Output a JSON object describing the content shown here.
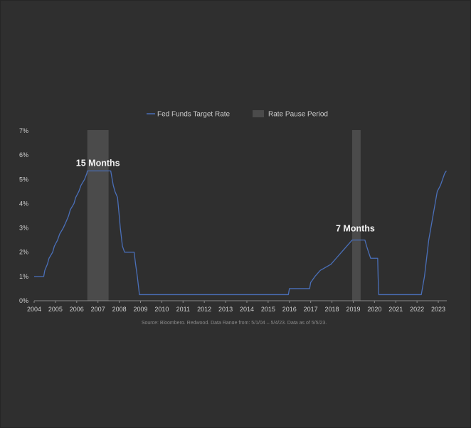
{
  "chart_data": {
    "type": "line",
    "legend": {
      "line_label": "Fed Funds Target Rate",
      "band_label": "Rate Pause Period",
      "placement": "top-center"
    },
    "colors": {
      "line": "#4a6fb8",
      "band": "#4b4b4b",
      "background": "#2f2f2f",
      "text": "#cfcfcf"
    },
    "ylim": [
      0,
      7
    ],
    "y_ticks": [
      {
        "value": 0,
        "label": "0%"
      },
      {
        "value": 1,
        "label": "1%"
      },
      {
        "value": 2,
        "label": "2%"
      },
      {
        "value": 3,
        "label": "3%"
      },
      {
        "value": 4,
        "label": "4%"
      },
      {
        "value": 5,
        "label": "5%"
      },
      {
        "value": 6,
        "label": "6%"
      },
      {
        "value": 7,
        "label": "7%"
      }
    ],
    "xlim": [
      2004,
      2023.4
    ],
    "x_ticks": [
      {
        "value": 2004,
        "label": "2004"
      },
      {
        "value": 2005,
        "label": "2005"
      },
      {
        "value": 2006,
        "label": "2006"
      },
      {
        "value": 2007,
        "label": "2007"
      },
      {
        "value": 2008,
        "label": "2008"
      },
      {
        "value": 2009,
        "label": "2009"
      },
      {
        "value": 2010,
        "label": "2010"
      },
      {
        "value": 2011,
        "label": "2011"
      },
      {
        "value": 2012,
        "label": "2012"
      },
      {
        "value": 2013,
        "label": "2013"
      },
      {
        "value": 2014,
        "label": "2014"
      },
      {
        "value": 2015,
        "label": "2015"
      },
      {
        "value": 2016,
        "label": "2016"
      },
      {
        "value": 2017,
        "label": "2017"
      },
      {
        "value": 2018,
        "label": "2018"
      },
      {
        "value": 2019,
        "label": "2019"
      },
      {
        "value": 2020,
        "label": "2020"
      },
      {
        "value": 2021,
        "label": "2021"
      },
      {
        "value": 2022,
        "label": "2022"
      },
      {
        "value": 2023,
        "label": "2023"
      }
    ],
    "pause_periods": [
      {
        "start": 2006.5,
        "end": 2007.5
      },
      {
        "start": 2018.95,
        "end": 2019.35
      }
    ],
    "annotations": [
      {
        "text": "15 Months",
        "x": 2007.0,
        "y": 5.55
      },
      {
        "text": "7 Months",
        "x": 2019.1,
        "y": 2.85
      }
    ],
    "series": [
      {
        "name": "Fed Funds Target Rate",
        "points": [
          [
            2004.0,
            1.0
          ],
          [
            2004.45,
            1.0
          ],
          [
            2004.5,
            1.25
          ],
          [
            2004.62,
            1.5
          ],
          [
            2004.7,
            1.75
          ],
          [
            2004.87,
            2.0
          ],
          [
            2004.95,
            2.25
          ],
          [
            2005.1,
            2.5
          ],
          [
            2005.2,
            2.75
          ],
          [
            2005.37,
            3.0
          ],
          [
            2005.5,
            3.25
          ],
          [
            2005.62,
            3.5
          ],
          [
            2005.7,
            3.75
          ],
          [
            2005.87,
            4.0
          ],
          [
            2005.95,
            4.25
          ],
          [
            2006.1,
            4.5
          ],
          [
            2006.2,
            4.75
          ],
          [
            2006.37,
            5.0
          ],
          [
            2006.48,
            5.25
          ],
          [
            2006.5,
            5.35
          ],
          [
            2007.6,
            5.35
          ],
          [
            2007.72,
            4.75
          ],
          [
            2007.8,
            4.5
          ],
          [
            2007.92,
            4.25
          ],
          [
            2008.0,
            3.5
          ],
          [
            2008.05,
            3.0
          ],
          [
            2008.15,
            2.25
          ],
          [
            2008.25,
            2.0
          ],
          [
            2008.7,
            2.0
          ],
          [
            2008.77,
            1.5
          ],
          [
            2008.85,
            1.0
          ],
          [
            2008.95,
            0.25
          ],
          [
            2015.95,
            0.25
          ],
          [
            2016.0,
            0.5
          ],
          [
            2016.95,
            0.5
          ],
          [
            2017.0,
            0.75
          ],
          [
            2017.2,
            1.0
          ],
          [
            2017.45,
            1.25
          ],
          [
            2017.95,
            1.5
          ],
          [
            2018.2,
            1.75
          ],
          [
            2018.45,
            2.0
          ],
          [
            2018.7,
            2.25
          ],
          [
            2018.95,
            2.5
          ],
          [
            2019.55,
            2.5
          ],
          [
            2019.63,
            2.25
          ],
          [
            2019.72,
            2.0
          ],
          [
            2019.82,
            1.75
          ],
          [
            2020.15,
            1.75
          ],
          [
            2020.17,
            1.0
          ],
          [
            2020.2,
            0.25
          ],
          [
            2022.2,
            0.25
          ],
          [
            2022.25,
            0.5
          ],
          [
            2022.35,
            1.0
          ],
          [
            2022.45,
            1.75
          ],
          [
            2022.55,
            2.5
          ],
          [
            2022.7,
            3.25
          ],
          [
            2022.85,
            4.0
          ],
          [
            2022.95,
            4.5
          ],
          [
            2023.1,
            4.75
          ],
          [
            2023.2,
            5.0
          ],
          [
            2023.3,
            5.25
          ],
          [
            2023.38,
            5.35
          ]
        ]
      }
    ],
    "source_text": "Source: Bloomberg, Redwood. Data Range from: 5/1/04 – 5/4/23. Data as of 5/5/23."
  }
}
